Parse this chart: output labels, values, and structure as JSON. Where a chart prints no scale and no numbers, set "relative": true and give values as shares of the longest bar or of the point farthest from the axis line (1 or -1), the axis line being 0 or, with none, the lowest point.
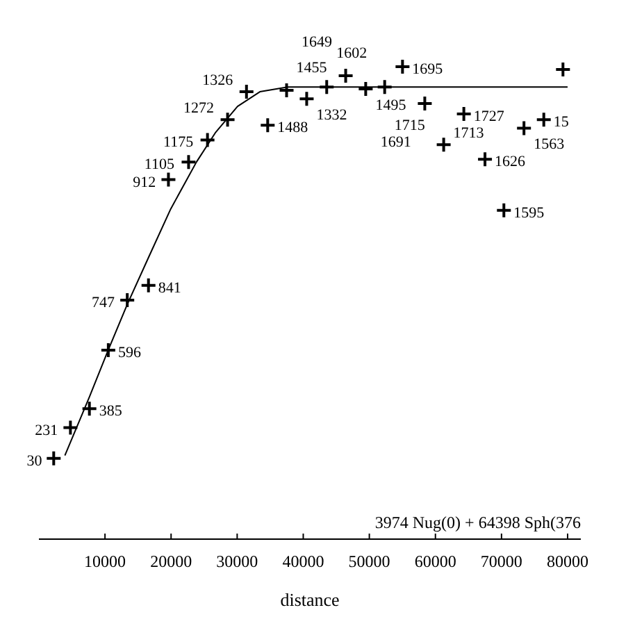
{
  "chart_data": {
    "type": "scatter",
    "relative": true,
    "xlabel": "distance",
    "xlim": [
      0,
      82000
    ],
    "xticks": [
      10000,
      20000,
      30000,
      40000,
      50000,
      60000,
      70000,
      80000
    ],
    "grid": false,
    "annotations": [
      "3974 Nug(0) + 64398 Sph(376",
      {
        "text": "30",
        "x": 2240,
        "y": 0.171
      },
      {
        "text": "231",
        "x": 4770,
        "y": 0.236
      },
      {
        "text": "385",
        "x": 7640,
        "y": 0.276
      },
      {
        "text": "596",
        "x": 10500,
        "y": 0.4
      },
      {
        "text": "747",
        "x": 13370,
        "y": 0.506
      },
      {
        "text": "841",
        "x": 16580,
        "y": 0.537
      },
      {
        "text": "912",
        "x": 19600,
        "y": 0.761
      },
      {
        "text": "1105",
        "x": 22650,
        "y": 0.798
      },
      {
        "text": "1175",
        "x": 25510,
        "y": 0.845
      },
      {
        "text": "1272",
        "x": 28550,
        "y": 0.888
      },
      {
        "text": "1326",
        "x": 31410,
        "y": 0.947
      },
      {
        "text": "1488",
        "x": 34620,
        "y": 0.876
      },
      {
        "text": "1455",
        "x": 37480,
        "y": 0.95
      },
      {
        "text": "1332",
        "x": 40520,
        "y": 0.932
      },
      {
        "text": "1602",
        "x": 43550,
        "y": 0.957
      },
      {
        "text": "1649",
        "x": 46420,
        "y": 0.981
      },
      {
        "text": "1495",
        "x": 49450,
        "y": 0.953
      },
      {
        "text": "1715",
        "x": 52320,
        "y": 0.957
      },
      {
        "text": "1695",
        "x": 55020,
        "y": 1
      },
      {
        "text": "1691",
        "x": 58390,
        "y": 0.922
      },
      {
        "text": "1713",
        "x": 61250,
        "y": 0.835
      },
      {
        "text": "1727",
        "x": 64300,
        "y": 0.9
      },
      {
        "text": "1626",
        "x": 67500,
        "y": 0.804
      },
      {
        "text": "1595",
        "x": 70360,
        "y": 0.696
      },
      {
        "text": "1563",
        "x": 73400,
        "y": 0.87
      },
      {
        "text": "15",
        "x": 76400,
        "y": 0.888
      }
    ],
    "series": [
      {
        "color": "#000000",
        "marker": "cross",
        "x": [
          2240,
          4770,
          7640,
          10500,
          13370,
          16580,
          19600,
          22650,
          25510,
          28550,
          31410,
          34620,
          37480,
          40520,
          43550,
          46420,
          49450,
          52320,
          55020,
          58390,
          61250,
          64300,
          67500,
          70360,
          73400,
          76400,
          79300
        ],
        "values": [
          0.171,
          0.236,
          0.276,
          0.4,
          0.506,
          0.537,
          0.761,
          0.798,
          0.845,
          0.888,
          0.947,
          0.876,
          0.95,
          0.932,
          0.957,
          0.981,
          0.953,
          0.957,
          1,
          0.922,
          0.835,
          0.9,
          0.804,
          0.696,
          0.87,
          0.888,
          0.994
        ]
      },
      {
        "type": "line",
        "color": "#000000",
        "line_style": "solid",
        "x": [
          3930,
          7640,
          10510,
          13370,
          16580,
          19950,
          23830,
          26690,
          30060,
          33440,
          37650,
          80000
        ],
        "values": [
          0.177,
          0.301,
          0.401,
          0.497,
          0.596,
          0.699,
          0.798,
          0.86,
          0.916,
          0.947,
          0.957,
          0.957
        ]
      }
    ]
  }
}
